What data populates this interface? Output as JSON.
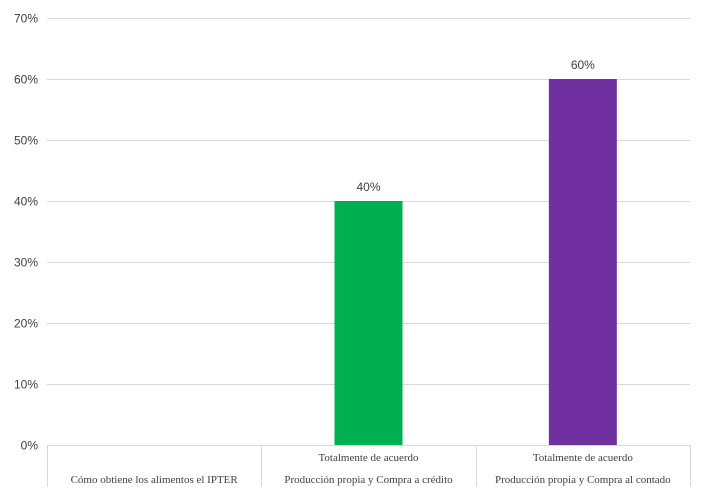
{
  "chart_data": {
    "type": "bar",
    "title": "",
    "xlabel": "",
    "ylabel": "",
    "ylim": [
      0,
      0.7
    ],
    "yticks": [
      "0%",
      "10%",
      "20%",
      "30%",
      "40%",
      "50%",
      "60%",
      "70%"
    ],
    "grid": true,
    "legend": "none",
    "categories": [
      {
        "lines": [
          "Cómo obtiene los alimentos el IPTER"
        ]
      },
      {
        "lines": [
          "Totalmente de acuerdo",
          "Producción propia y Compra a crédito"
        ]
      },
      {
        "lines": [
          "Totalmente de acuerdo",
          "Producción propia y Compra al contado"
        ]
      }
    ],
    "values": [
      null,
      0.4,
      0.6
    ],
    "data_labels": [
      "",
      "40%",
      "60%"
    ],
    "colors": [
      "#00B050",
      "#00B050",
      "#7030A0"
    ]
  }
}
